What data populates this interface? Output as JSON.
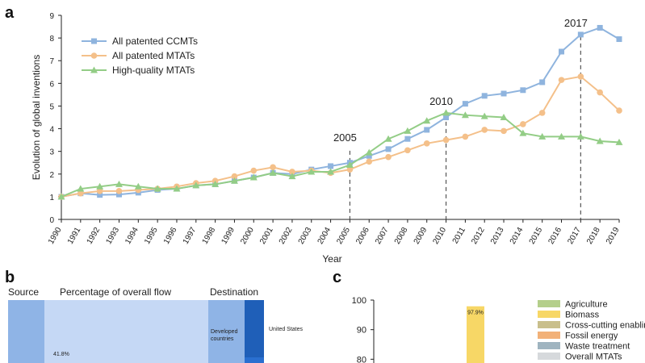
{
  "panel_labels": {
    "a": "a",
    "b": "b",
    "c": "c"
  },
  "chart_data": [
    {
      "type": "line",
      "title": "",
      "xlabel": "Year",
      "ylabel": "Evolution of global inventions",
      "ylim": [
        0,
        9
      ],
      "yticks": [
        0,
        1,
        2,
        3,
        4,
        5,
        6,
        7,
        8,
        9
      ],
      "x": [
        1990,
        1991,
        1992,
        1993,
        1994,
        1995,
        1996,
        1997,
        1998,
        1999,
        2000,
        2001,
        2002,
        2003,
        2004,
        2005,
        2006,
        2007,
        2008,
        2009,
        2010,
        2011,
        2012,
        2013,
        2014,
        2015,
        2016,
        2017,
        2018,
        2019
      ],
      "grid": false,
      "legend_position": "top-left",
      "series": [
        {
          "name": "All patented CCMTs",
          "color": "#8fb4de",
          "marker": "square",
          "values": [
            1.0,
            1.15,
            1.08,
            1.1,
            1.18,
            1.3,
            1.35,
            1.5,
            1.55,
            1.7,
            1.85,
            2.05,
            2.0,
            2.2,
            2.35,
            2.5,
            2.8,
            3.1,
            3.55,
            3.95,
            4.5,
            5.1,
            5.45,
            5.55,
            5.7,
            6.05,
            7.4,
            8.15,
            8.45,
            7.95
          ]
        },
        {
          "name": "All patented MTATs",
          "color": "#f4c08a",
          "marker": "circle",
          "values": [
            1.0,
            1.15,
            1.25,
            1.25,
            1.3,
            1.35,
            1.45,
            1.6,
            1.7,
            1.9,
            2.15,
            2.3,
            2.1,
            2.15,
            2.05,
            2.2,
            2.55,
            2.75,
            3.05,
            3.35,
            3.5,
            3.65,
            3.95,
            3.9,
            4.2,
            4.7,
            6.15,
            6.3,
            5.6,
            4.8
          ]
        },
        {
          "name": "High-quality MTATs",
          "color": "#93cd86",
          "marker": "triangle",
          "values": [
            1.0,
            1.35,
            1.45,
            1.55,
            1.45,
            1.35,
            1.35,
            1.5,
            1.55,
            1.7,
            1.85,
            2.05,
            1.9,
            2.1,
            2.1,
            2.4,
            2.95,
            3.55,
            3.9,
            4.35,
            4.7,
            4.6,
            4.55,
            4.5,
            3.8,
            3.65,
            3.65,
            3.65,
            3.45,
            3.4
          ]
        }
      ],
      "annotations": [
        {
          "x": 2005,
          "label": "2005",
          "y_top": 3.1
        },
        {
          "x": 2010,
          "label": "2010",
          "y_top": 4.7
        },
        {
          "x": 2017,
          "label": "2017",
          "y_top": 8.15
        }
      ]
    },
    {
      "type": "sankey",
      "headers": [
        "Source",
        "Percentage of overall flow",
        "Destination"
      ],
      "labels": {
        "flow_value": "41.8%",
        "destination_node": [
          "Developed",
          "countries"
        ],
        "country": "United States"
      },
      "colors": {
        "source": "#8fb4e6",
        "flow": "#c5d8f5",
        "dest": "#8fb4e6",
        "country": "#1f5fb8",
        "country_bottom": "#2a6fd0"
      }
    },
    {
      "type": "bar",
      "yticks": [
        80,
        90,
        100
      ],
      "ylim": [
        76,
        100
      ],
      "bar": {
        "value": 97.9,
        "label": "97.9%",
        "color": "#f7d766"
      },
      "legend": [
        {
          "name": "Agriculture",
          "color": "#b4cf8b"
        },
        {
          "name": "Biomass",
          "color": "#f7d766"
        },
        {
          "name": "Cross-cutting enabling",
          "color": "#c9bf8c"
        },
        {
          "name": "Fossil energy",
          "color": "#f2b178"
        },
        {
          "name": "Waste treatment",
          "color": "#9fb4c0"
        },
        {
          "name": "Overall MTATs",
          "color": "#d6d9dc"
        }
      ]
    }
  ]
}
